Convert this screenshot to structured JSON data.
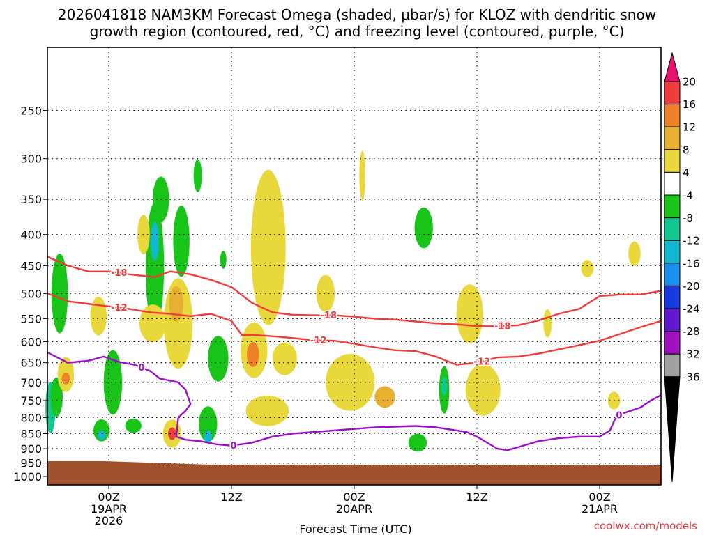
{
  "title_line1": "2026041818 NAM3KM Forecast Omega (shaded, μbar/s) for KLOZ with dendritic snow",
  "title_line2": "growth region (contoured, red, °C) and freezing level (contoured, purple, °C)",
  "credit": "coolwx.com/models",
  "chart_data": {
    "type": "heatmap",
    "xlabel": "Forecast Time (UTC)",
    "ylabel": "",
    "x_ticks": [
      {
        "hour": 6,
        "lines": [
          "00Z",
          "19APR",
          "2026"
        ]
      },
      {
        "hour": 18,
        "lines": [
          "12Z"
        ]
      },
      {
        "hour": 30,
        "lines": [
          "00Z",
          "20APR"
        ]
      },
      {
        "hour": 42,
        "lines": [
          "12Z"
        ]
      },
      {
        "hour": 54,
        "lines": [
          "00Z",
          "21APR"
        ]
      }
    ],
    "xlim": [
      0,
      60
    ],
    "y_ticks": [
      250,
      300,
      350,
      400,
      450,
      500,
      550,
      600,
      650,
      700,
      750,
      800,
      850,
      900,
      950,
      1000
    ],
    "ylim_hpa": [
      1000,
      200
    ],
    "grid": true,
    "colorbar": {
      "labels": [
        "20",
        "16",
        "12",
        "8",
        "4",
        "-4",
        "-8",
        "-12",
        "-16",
        "-20",
        "-24",
        "-28",
        "-32",
        "-36"
      ],
      "bins": [
        {
          "color": "#e8126e",
          "label": ">20"
        },
        {
          "color": "#f03c3c",
          "label": "16 to 20"
        },
        {
          "color": "#ef8128",
          "label": "12 to 16"
        },
        {
          "color": "#e8b030",
          "label": "8 to 12"
        },
        {
          "color": "#e8d83c",
          "label": "4 to 8"
        },
        {
          "color": "#ffffff",
          "label": "-4 to 4"
        },
        {
          "color": "#18c418",
          "label": "-8 to -4"
        },
        {
          "color": "#10c890",
          "label": "-12 to -8"
        },
        {
          "color": "#10b8d0",
          "label": "-16 to -12"
        },
        {
          "color": "#1890f0",
          "label": "-20 to -16"
        },
        {
          "color": "#1838e0",
          "label": "-24 to -20"
        },
        {
          "color": "#6018d0",
          "label": "-28 to -24"
        },
        {
          "color": "#a010c0",
          "label": "-32 to -28"
        },
        {
          "color": "#a0a0a0",
          "label": "-36 to -32"
        },
        {
          "color": "#000000",
          "label": "<-36"
        }
      ]
    },
    "omega_blobs": [
      {
        "color": "#18c418",
        "t": 1.2,
        "p": 500,
        "dt": 0.8,
        "dp": 150
      },
      {
        "color": "#18c418",
        "t": 11.1,
        "p": 350,
        "dt": 0.8,
        "dp": 60
      },
      {
        "color": "#18c418",
        "t": 10.5,
        "p": 450,
        "dt": 0.9,
        "dp": 210
      },
      {
        "color": "#10b8d0",
        "t": 10.5,
        "p": 410,
        "dt": 0.4,
        "dp": 60
      },
      {
        "color": "#18c418",
        "t": 13.1,
        "p": 410,
        "dt": 0.8,
        "dp": 110
      },
      {
        "color": "#18c418",
        "t": 14.7,
        "p": 320,
        "dt": 0.4,
        "dp": 40
      },
      {
        "color": "#18c418",
        "t": 17.2,
        "p": 440,
        "dt": 0.3,
        "dp": 30
      },
      {
        "color": "#18c418",
        "t": 6.4,
        "p": 700,
        "dt": 0.9,
        "dp": 170
      },
      {
        "color": "#10c890",
        "t": 0.3,
        "p": 770,
        "dt": 0.5,
        "dp": 150
      },
      {
        "color": "#18c418",
        "t": 0.9,
        "p": 740,
        "dt": 0.6,
        "dp": 110
      },
      {
        "color": "#18c418",
        "t": 5.3,
        "p": 840,
        "dt": 0.8,
        "dp": 70
      },
      {
        "color": "#10b8d0",
        "t": 5.3,
        "p": 855,
        "dt": 0.4,
        "dp": 30
      },
      {
        "color": "#18c418",
        "t": 8.4,
        "p": 825,
        "dt": 0.8,
        "dp": 45
      },
      {
        "color": "#18c418",
        "t": 15.7,
        "p": 820,
        "dt": 0.9,
        "dp": 110
      },
      {
        "color": "#10b8d0",
        "t": 15.7,
        "p": 860,
        "dt": 0.4,
        "dp": 40
      },
      {
        "color": "#18c418",
        "t": 16.7,
        "p": 640,
        "dt": 1.0,
        "dp": 110
      },
      {
        "color": "#18c418",
        "t": 36.8,
        "p": 390,
        "dt": 0.9,
        "dp": 60
      },
      {
        "color": "#18c418",
        "t": 36.2,
        "p": 880,
        "dt": 0.9,
        "dp": 60
      },
      {
        "color": "#18c418",
        "t": 38.8,
        "p": 720,
        "dt": 0.5,
        "dp": 130
      },
      {
        "color": "#10c890",
        "t": 38.8,
        "p": 710,
        "dt": 0.3,
        "dp": 50
      },
      {
        "color": "#e8d83c",
        "t": 21.6,
        "p": 420,
        "dt": 1.7,
        "dp": 240
      },
      {
        "color": "#e8d83c",
        "t": 20.2,
        "p": 620,
        "dt": 1.3,
        "dp": 130
      },
      {
        "color": "#e8d83c",
        "t": 21.5,
        "p": 780,
        "dt": 2.1,
        "dp": 90
      },
      {
        "color": "#ef8128",
        "t": 20.1,
        "p": 630,
        "dt": 0.6,
        "dp": 60
      },
      {
        "color": "#e8d83c",
        "t": 9.4,
        "p": 400,
        "dt": 0.6,
        "dp": 60
      },
      {
        "color": "#e8d83c",
        "t": 12.8,
        "p": 560,
        "dt": 1.4,
        "dp": 190
      },
      {
        "color": "#e8b030",
        "t": 12.6,
        "p": 520,
        "dt": 0.7,
        "dp": 70
      },
      {
        "color": "#e8d83c",
        "t": 12.2,
        "p": 850,
        "dt": 0.9,
        "dp": 90
      },
      {
        "color": "#f03c3c",
        "t": 12.2,
        "p": 850,
        "dt": 0.4,
        "dp": 40
      },
      {
        "color": "#e8d83c",
        "t": 1.8,
        "p": 680,
        "dt": 0.8,
        "dp": 90
      },
      {
        "color": "#ef8128",
        "t": 1.8,
        "p": 690,
        "dt": 0.4,
        "dp": 30
      },
      {
        "color": "#e8d83c",
        "t": 10.3,
        "p": 560,
        "dt": 1.3,
        "dp": 80
      },
      {
        "color": "#e8d83c",
        "t": 23.2,
        "p": 640,
        "dt": 1.2,
        "dp": 80
      },
      {
        "color": "#e8d83c",
        "t": 29.6,
        "p": 700,
        "dt": 2.4,
        "dp": 150
      },
      {
        "color": "#e8b030",
        "t": 33.0,
        "p": 740,
        "dt": 1.0,
        "dp": 60
      },
      {
        "color": "#e8d83c",
        "t": 30.8,
        "p": 320,
        "dt": 0.3,
        "dp": 60
      },
      {
        "color": "#e8d83c",
        "t": 41.3,
        "p": 540,
        "dt": 1.3,
        "dp": 120
      },
      {
        "color": "#e8d83c",
        "t": 42.6,
        "p": 720,
        "dt": 1.7,
        "dp": 140
      },
      {
        "color": "#e8d83c",
        "t": 48.9,
        "p": 560,
        "dt": 0.4,
        "dp": 60
      },
      {
        "color": "#e8d83c",
        "t": 52.8,
        "p": 455,
        "dt": 0.6,
        "dp": 30
      },
      {
        "color": "#e8d83c",
        "t": 57.4,
        "p": 430,
        "dt": 0.6,
        "dp": 40
      },
      {
        "color": "#e8d83c",
        "t": 55.4,
        "p": 750,
        "dt": 0.6,
        "dp": 50
      },
      {
        "color": "#e8d83c",
        "t": 27.2,
        "p": 500,
        "dt": 0.9,
        "dp": 70
      },
      {
        "color": "#e8d83c",
        "t": 5.0,
        "p": 545,
        "dt": 0.8,
        "dp": 80
      }
    ],
    "dgz_contours": [
      {
        "label": "-18",
        "hours": [
          0,
          2,
          4,
          6,
          8,
          10.5,
          12,
          14,
          16,
          18,
          20,
          22,
          24,
          26,
          28,
          30,
          32,
          34,
          36,
          38,
          40,
          42,
          44,
          46,
          48,
          50,
          52,
          54,
          56,
          58,
          60
        ],
        "hpa": [
          435,
          450,
          460,
          460,
          465,
          470,
          460,
          465,
          475,
          488,
          518,
          537,
          542,
          543,
          543,
          546,
          550,
          552,
          556,
          560,
          562,
          566,
          566,
          564,
          554,
          540,
          530,
          505,
          502,
          502,
          495
        ],
        "label_positions": [
          7,
          27.5,
          44.5
        ]
      },
      {
        "label": "-12",
        "hours": [
          0,
          2,
          4,
          6,
          8,
          10,
          12,
          14,
          16,
          18,
          19,
          20,
          22,
          24,
          26,
          28,
          30,
          32,
          34,
          36,
          38,
          40,
          42,
          44,
          46,
          48,
          50,
          52,
          54,
          56,
          58,
          60
        ],
        "hpa": [
          500,
          515,
          520,
          525,
          530,
          537,
          540,
          545,
          540,
          555,
          585,
          585,
          588,
          592,
          597,
          598,
          605,
          613,
          620,
          622,
          635,
          655,
          650,
          637,
          635,
          628,
          618,
          608,
          598,
          583,
          568,
          555
        ],
        "label_positions": [
          7,
          26.5,
          42.5
        ]
      }
    ],
    "freezing_contour": {
      "label": "0",
      "hours": [
        0,
        2,
        4,
        5.5,
        7,
        8.5,
        10,
        11,
        12.8,
        13.5,
        14,
        13.5,
        12.8,
        12.6,
        13.5,
        15,
        16.5,
        18,
        20,
        22,
        24,
        26,
        28,
        30,
        32,
        34,
        36,
        38,
        40,
        41,
        42,
        43,
        44,
        45,
        46,
        47,
        48,
        50,
        52,
        54,
        55,
        55.5,
        56,
        57,
        58,
        59,
        60
      ],
      "hpa": [
        625,
        650,
        645,
        635,
        648,
        655,
        670,
        690,
        700,
        720,
        760,
        780,
        800,
        860,
        870,
        875,
        885,
        890,
        880,
        860,
        850,
        845,
        840,
        835,
        830,
        828,
        826,
        830,
        840,
        845,
        860,
        880,
        900,
        905,
        895,
        885,
        875,
        865,
        860,
        860,
        840,
        805,
        790,
        780,
        770,
        750,
        735
      ],
      "label_positions": [
        9.2,
        18.2,
        55.9
      ]
    }
  }
}
